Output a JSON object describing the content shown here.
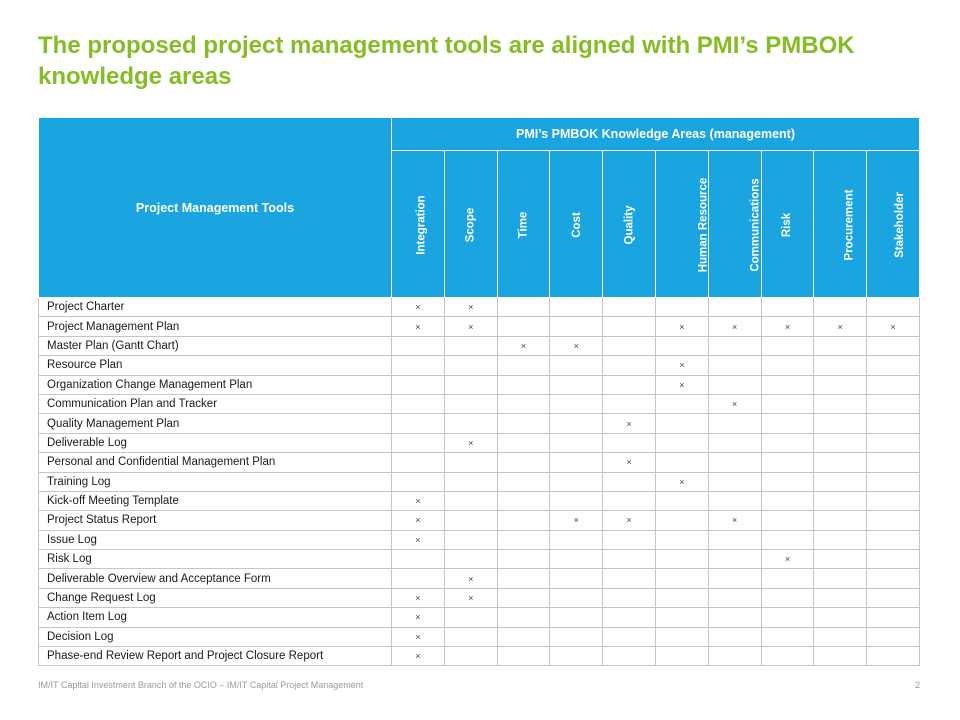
{
  "title": "The proposed project management tools are aligned with PMI’s PMBOK knowledge areas",
  "table": {
    "corner_header": "Project Management Tools",
    "group_header": "PMI’s PMBOK Knowledge Areas (management)",
    "mark_symbol": "×",
    "areas": [
      "Integration",
      "Scope",
      "Time",
      "Cost",
      "Quality",
      "Human Resource",
      "Communications",
      "Risk",
      "Procurement",
      "Stakeholder"
    ],
    "rows": [
      {
        "tool": "Project Charter",
        "marks": [
          1,
          1,
          0,
          0,
          0,
          0,
          0,
          0,
          0,
          0
        ]
      },
      {
        "tool": "Project Management Plan",
        "marks": [
          1,
          1,
          0,
          0,
          0,
          1,
          1,
          1,
          1,
          1
        ]
      },
      {
        "tool": "Master Plan (Gantt Chart)",
        "marks": [
          0,
          0,
          1,
          1,
          0,
          0,
          0,
          0,
          0,
          0
        ]
      },
      {
        "tool": "Resource Plan",
        "marks": [
          0,
          0,
          0,
          0,
          0,
          1,
          0,
          0,
          0,
          0
        ]
      },
      {
        "tool": "Organization Change Management Plan",
        "marks": [
          0,
          0,
          0,
          0,
          0,
          1,
          0,
          0,
          0,
          0
        ]
      },
      {
        "tool": "Communication Plan and Tracker",
        "marks": [
          0,
          0,
          0,
          0,
          0,
          0,
          1,
          0,
          0,
          0
        ]
      },
      {
        "tool": "Quality Management Plan",
        "marks": [
          0,
          0,
          0,
          0,
          1,
          0,
          0,
          0,
          0,
          0
        ]
      },
      {
        "tool": "Deliverable Log",
        "marks": [
          0,
          1,
          0,
          0,
          0,
          0,
          0,
          0,
          0,
          0
        ]
      },
      {
        "tool": "Personal and Confidential Management Plan",
        "marks": [
          0,
          0,
          0,
          0,
          1,
          0,
          0,
          0,
          0,
          0
        ]
      },
      {
        "tool": "Training Log",
        "marks": [
          0,
          0,
          0,
          0,
          0,
          1,
          0,
          0,
          0,
          0
        ]
      },
      {
        "tool": "Kick-off Meeting Template",
        "marks": [
          1,
          0,
          0,
          0,
          0,
          0,
          0,
          0,
          0,
          0
        ]
      },
      {
        "tool": "Project Status Report",
        "marks": [
          1,
          0,
          0,
          1,
          1,
          0,
          1,
          0,
          0,
          0
        ]
      },
      {
        "tool": "Issue Log",
        "marks": [
          1,
          0,
          0,
          0,
          0,
          0,
          0,
          0,
          0,
          0
        ]
      },
      {
        "tool": "Risk Log",
        "marks": [
          0,
          0,
          0,
          0,
          0,
          0,
          0,
          1,
          0,
          0
        ]
      },
      {
        "tool": "Deliverable Overview and Acceptance Form",
        "marks": [
          0,
          1,
          0,
          0,
          0,
          0,
          0,
          0,
          0,
          0
        ]
      },
      {
        "tool": "Change Request Log",
        "marks": [
          1,
          1,
          0,
          0,
          0,
          0,
          0,
          0,
          0,
          0
        ]
      },
      {
        "tool": "Action Item Log",
        "marks": [
          1,
          0,
          0,
          0,
          0,
          0,
          0,
          0,
          0,
          0
        ]
      },
      {
        "tool": "Decision Log",
        "marks": [
          1,
          0,
          0,
          0,
          0,
          0,
          0,
          0,
          0,
          0
        ]
      },
      {
        "tool": "Phase-end Review Report and Project Closure Report",
        "marks": [
          1,
          0,
          0,
          0,
          0,
          0,
          0,
          0,
          0,
          0
        ]
      }
    ]
  },
  "footer": {
    "text": "IM/IT Capital Investment Branch of the OCIO – IM/IT Capital Project Management",
    "page_number": "2"
  }
}
